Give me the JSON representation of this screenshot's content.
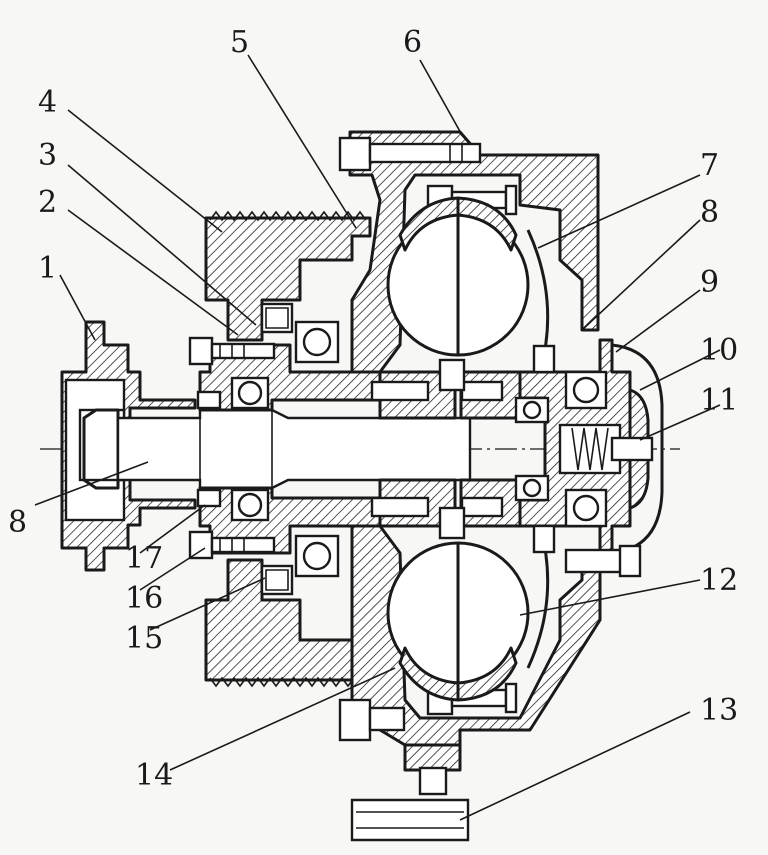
{
  "callouts": [
    {
      "id": "c1",
      "text": "1"
    },
    {
      "id": "c2",
      "text": "2"
    },
    {
      "id": "c3",
      "text": "3"
    },
    {
      "id": "c4",
      "text": "4"
    },
    {
      "id": "c5",
      "text": "5"
    },
    {
      "id": "c6",
      "text": "6"
    },
    {
      "id": "c7",
      "text": "7"
    },
    {
      "id": "c8a",
      "text": "8"
    },
    {
      "id": "c8b",
      "text": "8"
    },
    {
      "id": "c9",
      "text": "9"
    },
    {
      "id": "c10",
      "text": "10"
    },
    {
      "id": "c11",
      "text": "11"
    },
    {
      "id": "c12",
      "text": "12"
    },
    {
      "id": "c13",
      "text": "13"
    },
    {
      "id": "c14",
      "text": "14"
    },
    {
      "id": "c15",
      "text": "15"
    },
    {
      "id": "c16",
      "text": "16"
    },
    {
      "id": "c17",
      "text": "17"
    }
  ]
}
